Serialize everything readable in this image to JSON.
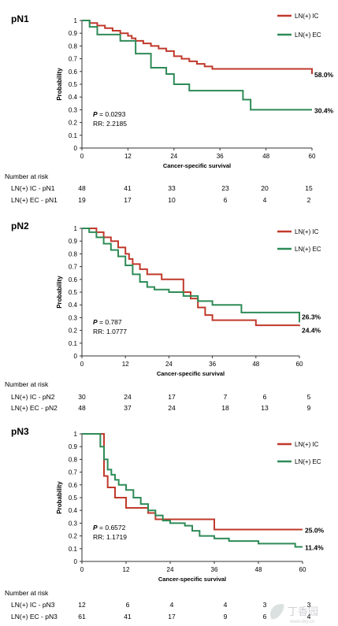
{
  "chart_data": [
    {
      "type": "line",
      "panel_label": "pN1",
      "xlabel": "Cancer-specific survival",
      "ylabel": "Probability",
      "xlim": [
        0,
        60
      ],
      "ylim": [
        0,
        1
      ],
      "x_ticks": [
        0,
        12,
        24,
        36,
        48,
        60
      ],
      "y_ticks": [
        0,
        0.1,
        0.2,
        0.3,
        0.4,
        0.5,
        0.6,
        0.7,
        0.8,
        0.9,
        1
      ],
      "legend": [
        "LN(+) IC",
        "LN(+) EC"
      ],
      "legend_position": "top-right",
      "p_label": "P",
      "p_value": " = 0.0293",
      "rr_text": "RR: 2.2185",
      "series": [
        {
          "name": "LN(+) IC",
          "color": "#c0392b",
          "end_label": "58.0%",
          "x": [
            0,
            2,
            4,
            6,
            8,
            10,
            12,
            13,
            14,
            16,
            18,
            20,
            22,
            24,
            26,
            28,
            30,
            32,
            34,
            36,
            60
          ],
          "y": [
            1,
            0.98,
            0.96,
            0.94,
            0.92,
            0.9,
            0.88,
            0.86,
            0.84,
            0.82,
            0.8,
            0.78,
            0.76,
            0.72,
            0.7,
            0.68,
            0.66,
            0.64,
            0.62,
            0.62,
            0.58
          ]
        },
        {
          "name": "LN(+) EC",
          "color": "#2e8b57",
          "end_label": "30.4%",
          "x": [
            0,
            2,
            4,
            10,
            14,
            18,
            22,
            24,
            28,
            36,
            42,
            44,
            60
          ],
          "y": [
            1,
            0.95,
            0.89,
            0.84,
            0.74,
            0.63,
            0.58,
            0.5,
            0.45,
            0.45,
            0.38,
            0.3,
            0.3
          ]
        }
      ],
      "risk_table": {
        "title": "Number at risk",
        "rows": [
          {
            "label": "LN(+) IC - pN1",
            "values": [
              "48",
              "41",
              "33",
              "23",
              "20",
              "15"
            ]
          },
          {
            "label": "LN(+) EC - pN1",
            "values": [
              "19",
              "17",
              "10",
              "6",
              "4",
              "2"
            ]
          }
        ]
      }
    },
    {
      "type": "line",
      "panel_label": "pN2",
      "xlabel": "Cancer-specific survival",
      "ylabel": "Probability",
      "xlim": [
        0,
        60
      ],
      "ylim": [
        0,
        1
      ],
      "x_ticks": [
        0,
        12,
        24,
        36,
        48,
        60
      ],
      "y_ticks": [
        0,
        0.1,
        0.2,
        0.3,
        0.4,
        0.5,
        0.6,
        0.7,
        0.8,
        0.9,
        1
      ],
      "legend": [
        "LN(+) IC",
        "LN(+) EC"
      ],
      "legend_position": "top-right",
      "p_label": "P",
      "p_value": " = 0.787",
      "rr_text": "RR: 1.0777",
      "series": [
        {
          "name": "LN(+) IC",
          "color": "#c0392b",
          "end_label": "24.4%",
          "x": [
            0,
            4,
            6,
            8,
            10,
            12,
            13,
            14,
            16,
            18,
            20,
            22,
            28,
            30,
            32,
            34,
            36,
            48,
            60
          ],
          "y": [
            1,
            0.97,
            0.93,
            0.9,
            0.85,
            0.8,
            0.76,
            0.72,
            0.68,
            0.64,
            0.64,
            0.6,
            0.5,
            0.45,
            0.38,
            0.32,
            0.28,
            0.24,
            0.244
          ]
        },
        {
          "name": "LN(+) EC",
          "color": "#2e8b57",
          "end_label": "26.3%",
          "x": [
            0,
            2,
            4,
            6,
            8,
            10,
            12,
            14,
            16,
            18,
            20,
            24,
            28,
            32,
            36,
            44,
            60
          ],
          "y": [
            1,
            0.97,
            0.93,
            0.88,
            0.83,
            0.78,
            0.71,
            0.64,
            0.58,
            0.54,
            0.52,
            0.5,
            0.47,
            0.43,
            0.4,
            0.34,
            0.263
          ]
        }
      ],
      "risk_table": {
        "title": "Number at risk",
        "rows": [
          {
            "label": "LN(+) IC - pN2",
            "values": [
              "30",
              "24",
              "17",
              "7",
              "6",
              "5"
            ]
          },
          {
            "label": "LN(+) EC - pN2",
            "values": [
              "48",
              "37",
              "24",
              "18",
              "13",
              "9"
            ]
          }
        ]
      }
    },
    {
      "type": "line",
      "panel_label": "pN3",
      "xlabel": "Cancer-specific survival",
      "ylabel": "Probability",
      "xlim": [
        0,
        60
      ],
      "ylim": [
        0,
        1
      ],
      "x_ticks": [
        0,
        12,
        24,
        36,
        48,
        60
      ],
      "y_ticks": [
        0,
        0.1,
        0.2,
        0.3,
        0.4,
        0.5,
        0.6,
        0.7,
        0.8,
        0.9,
        1
      ],
      "legend": [
        "LN(+) IC",
        "LN(+) EC"
      ],
      "legend_position": "top-right",
      "p_label": "P",
      "p_value": " = 0.6572",
      "rr_text": "RR: 1.1719",
      "series": [
        {
          "name": "LN(+) IC",
          "color": "#c0392b",
          "end_label": "25.0%",
          "x": [
            0,
            6,
            7,
            9,
            12,
            14,
            18,
            20,
            24,
            36,
            60
          ],
          "y": [
            1,
            0.67,
            0.58,
            0.5,
            0.42,
            0.42,
            0.38,
            0.33,
            0.33,
            0.25,
            0.25
          ]
        },
        {
          "name": "LN(+) EC",
          "color": "#2e8b57",
          "end_label": "11.4%",
          "x": [
            0,
            5,
            6,
            7,
            8,
            9,
            10,
            12,
            14,
            16,
            18,
            20,
            22,
            24,
            28,
            30,
            32,
            36,
            40,
            48,
            58,
            60
          ],
          "y": [
            1,
            0.9,
            0.8,
            0.72,
            0.68,
            0.64,
            0.6,
            0.56,
            0.5,
            0.45,
            0.4,
            0.36,
            0.32,
            0.3,
            0.28,
            0.24,
            0.2,
            0.18,
            0.16,
            0.14,
            0.114,
            0.114
          ]
        }
      ],
      "risk_table": {
        "title": "Number at risk",
        "rows": [
          {
            "label": "LN(+) IC - pN3",
            "values": [
              "12",
              "6",
              "4",
              "4",
              "3",
              "3"
            ]
          },
          {
            "label": "LN(+) EC - pN3",
            "values": [
              "61",
              "41",
              "17",
              "9",
              "6",
              "4"
            ]
          }
        ]
      }
    }
  ],
  "watermark": "丁香园",
  "watermark_sub": "www.dxy.cn",
  "watermark_icon": "leaf-logo-icon"
}
